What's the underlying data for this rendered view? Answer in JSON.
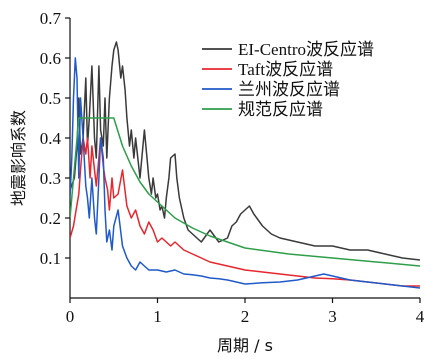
{
  "chart_data": {
    "type": "line",
    "xlabel": "周期 / s",
    "ylabel": "地震影响系数",
    "xlim": [
      0,
      4
    ],
    "ylim": [
      0.0,
      0.7
    ],
    "x_ticks": [
      "0",
      "1",
      "2",
      "3",
      "4"
    ],
    "y_ticks": [
      "0.1",
      "0.2",
      "0.3",
      "0.4",
      "0.5",
      "0.6",
      "0.7"
    ],
    "grid": false,
    "legend_position": "top-right",
    "series": [
      {
        "name": "EI-Centro波反应谱",
        "color": "#3a3a3a",
        "x": [
          0.0,
          0.05,
          0.08,
          0.1,
          0.12,
          0.15,
          0.18,
          0.2,
          0.22,
          0.25,
          0.28,
          0.3,
          0.33,
          0.35,
          0.38,
          0.4,
          0.42,
          0.45,
          0.48,
          0.5,
          0.53,
          0.55,
          0.58,
          0.6,
          0.63,
          0.65,
          0.68,
          0.7,
          0.73,
          0.75,
          0.8,
          0.85,
          0.88,
          0.9,
          0.93,
          0.95,
          0.98,
          1.0,
          1.03,
          1.05,
          1.08,
          1.1,
          1.13,
          1.15,
          1.2,
          1.22,
          1.25,
          1.3,
          1.35,
          1.4,
          1.5,
          1.6,
          1.7,
          1.8,
          1.85,
          1.9,
          1.95,
          2.0,
          2.05,
          2.1,
          2.2,
          2.3,
          2.4,
          2.6,
          2.8,
          3.0,
          3.2,
          3.4,
          3.6,
          3.8,
          4.0
        ],
        "y": [
          0.27,
          0.3,
          0.38,
          0.5,
          0.36,
          0.4,
          0.55,
          0.38,
          0.45,
          0.58,
          0.4,
          0.35,
          0.58,
          0.42,
          0.38,
          0.5,
          0.35,
          0.5,
          0.58,
          0.62,
          0.64,
          0.62,
          0.55,
          0.58,
          0.52,
          0.45,
          0.38,
          0.42,
          0.35,
          0.4,
          0.3,
          0.42,
          0.35,
          0.3,
          0.26,
          0.3,
          0.25,
          0.26,
          0.22,
          0.23,
          0.2,
          0.25,
          0.3,
          0.35,
          0.36,
          0.3,
          0.25,
          0.2,
          0.17,
          0.16,
          0.14,
          0.17,
          0.14,
          0.15,
          0.18,
          0.19,
          0.21,
          0.22,
          0.23,
          0.21,
          0.18,
          0.16,
          0.15,
          0.14,
          0.13,
          0.13,
          0.12,
          0.12,
          0.11,
          0.1,
          0.095
        ]
      },
      {
        "name": "Taft波反应谱",
        "color": "#e8262e",
        "x": [
          0.0,
          0.04,
          0.07,
          0.1,
          0.12,
          0.15,
          0.18,
          0.2,
          0.23,
          0.25,
          0.28,
          0.3,
          0.33,
          0.35,
          0.38,
          0.4,
          0.43,
          0.45,
          0.48,
          0.5,
          0.55,
          0.6,
          0.65,
          0.7,
          0.75,
          0.8,
          0.85,
          0.9,
          0.95,
          1.0,
          1.05,
          1.1,
          1.15,
          1.2,
          1.3,
          1.4,
          1.5,
          1.6,
          1.8,
          2.0,
          2.2,
          2.4,
          2.6,
          2.8,
          3.0,
          3.2,
          3.4,
          3.6,
          3.8,
          4.0
        ],
        "y": [
          0.15,
          0.18,
          0.22,
          0.26,
          0.32,
          0.4,
          0.36,
          0.4,
          0.3,
          0.38,
          0.32,
          0.28,
          0.35,
          0.4,
          0.33,
          0.3,
          0.27,
          0.22,
          0.3,
          0.25,
          0.26,
          0.32,
          0.23,
          0.2,
          0.22,
          0.18,
          0.16,
          0.19,
          0.17,
          0.14,
          0.15,
          0.14,
          0.13,
          0.14,
          0.12,
          0.11,
          0.1,
          0.09,
          0.08,
          0.07,
          0.065,
          0.06,
          0.055,
          0.05,
          0.048,
          0.045,
          0.04,
          0.035,
          0.03,
          0.03
        ]
      },
      {
        "name": "兰州波反应谱",
        "color": "#1f5ac8",
        "x": [
          0.0,
          0.02,
          0.04,
          0.06,
          0.08,
          0.1,
          0.12,
          0.15,
          0.18,
          0.2,
          0.22,
          0.25,
          0.28,
          0.3,
          0.33,
          0.35,
          0.38,
          0.4,
          0.42,
          0.45,
          0.48,
          0.5,
          0.55,
          0.6,
          0.65,
          0.7,
          0.75,
          0.8,
          0.9,
          1.0,
          1.1,
          1.2,
          1.3,
          1.4,
          1.5,
          1.6,
          1.7,
          1.8,
          1.9,
          2.0,
          2.2,
          2.4,
          2.6,
          2.8,
          2.9,
          3.0,
          3.2,
          3.4,
          3.6,
          3.8,
          4.0
        ],
        "y": [
          0.25,
          0.35,
          0.5,
          0.6,
          0.55,
          0.3,
          0.5,
          0.4,
          0.28,
          0.25,
          0.2,
          0.3,
          0.2,
          0.16,
          0.3,
          0.4,
          0.35,
          0.22,
          0.14,
          0.17,
          0.12,
          0.18,
          0.22,
          0.13,
          0.1,
          0.08,
          0.07,
          0.09,
          0.07,
          0.07,
          0.065,
          0.07,
          0.06,
          0.058,
          0.055,
          0.05,
          0.048,
          0.045,
          0.04,
          0.035,
          0.038,
          0.04,
          0.045,
          0.055,
          0.06,
          0.055,
          0.045,
          0.04,
          0.035,
          0.03,
          0.025
        ]
      },
      {
        "name": "规范反应谱",
        "color": "#2e9e4a",
        "x": [
          0.0,
          0.1,
          0.2,
          0.35,
          0.5,
          0.6,
          0.7,
          0.8,
          0.9,
          1.0,
          1.2,
          1.4,
          1.6,
          1.8,
          2.0,
          2.5,
          3.0,
          3.5,
          4.0
        ],
        "y": [
          0.2,
          0.45,
          0.45,
          0.45,
          0.45,
          0.38,
          0.33,
          0.29,
          0.26,
          0.24,
          0.2,
          0.175,
          0.155,
          0.14,
          0.125,
          0.11,
          0.1,
          0.09,
          0.08
        ]
      }
    ]
  }
}
